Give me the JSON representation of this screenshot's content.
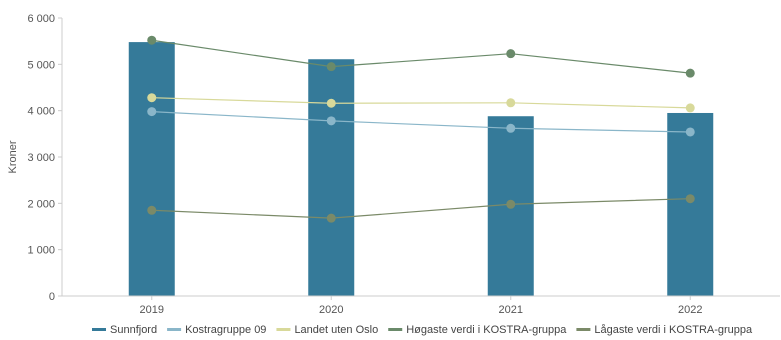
{
  "chart_data": {
    "type": "bar",
    "title": "",
    "xlabel": "",
    "ylabel": "Kroner",
    "categories": [
      "2019",
      "2020",
      "2021",
      "2022"
    ],
    "ylim": [
      0,
      6000
    ],
    "yticks": [
      0,
      1000,
      2000,
      3000,
      4000,
      5000,
      6000
    ],
    "ytick_labels": [
      "0",
      "1 000",
      "2 000",
      "3 000",
      "4 000",
      "5 000",
      "6 000"
    ],
    "grid": false,
    "legend_position": "bottom",
    "series": [
      {
        "name": "Sunnfjord",
        "kind": "bar",
        "color": "#357a99",
        "values": [
          5480,
          5110,
          3880,
          3950
        ]
      },
      {
        "name": "Kostragruppe 09",
        "kind": "line",
        "color": "#8ab6c9",
        "values": [
          3980,
          3780,
          3620,
          3540
        ]
      },
      {
        "name": "Landet uten Oslo",
        "kind": "line",
        "color": "#d8d99a",
        "values": [
          4280,
          4160,
          4170,
          4060
        ]
      },
      {
        "name": "Høgaste verdi i KOSTRA-gruppa",
        "kind": "line",
        "color": "#6a8a6a",
        "values": [
          5520,
          4950,
          5230,
          4810
        ]
      },
      {
        "name": "Lågaste verdi i KOSTRA-gruppa",
        "kind": "line",
        "color": "#7b8a68",
        "values": [
          1850,
          1680,
          1980,
          2100
        ]
      }
    ]
  }
}
